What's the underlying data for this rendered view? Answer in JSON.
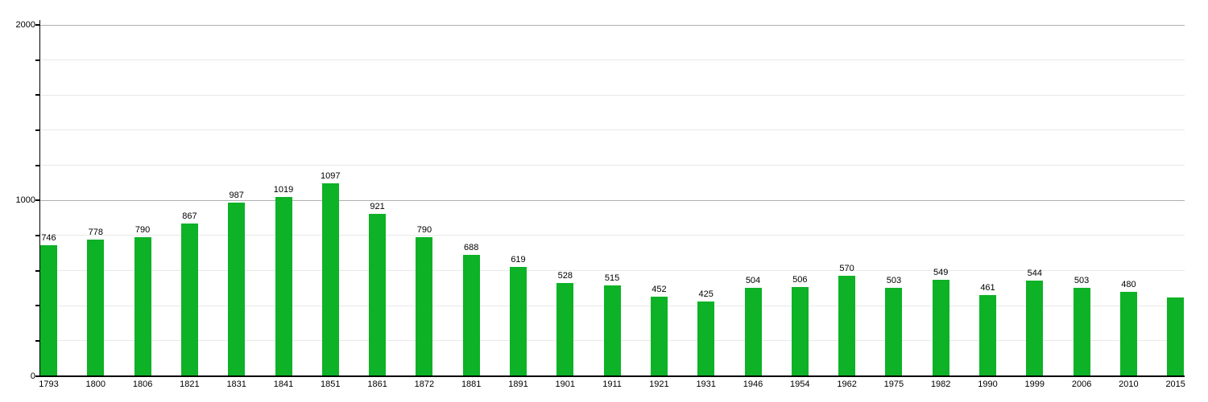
{
  "chart_data": {
    "type": "bar",
    "title": "",
    "xlabel": "",
    "ylabel": "",
    "categories": [
      "1793",
      "1800",
      "1806",
      "1821",
      "1831",
      "1841",
      "1851",
      "1861",
      "1872",
      "1881",
      "1891",
      "1901",
      "1911",
      "1921",
      "1931",
      "1946",
      "1954",
      "1962",
      "1975",
      "1982",
      "1990",
      "1999",
      "2006",
      "2010",
      "2015"
    ],
    "values": [
      746,
      778,
      790,
      867,
      987,
      1019,
      1097,
      921,
      790,
      688,
      619,
      528,
      515,
      452,
      425,
      504,
      506,
      570,
      503,
      549,
      461,
      544,
      503,
      480,
      445
    ],
    "bar_labels": [
      "746",
      "778",
      "790",
      "867",
      "987",
      "1019",
      "1097",
      "921",
      "790",
      "688",
      "619",
      "528",
      "515",
      "452",
      "425",
      "504",
      "506",
      "570",
      "503",
      "549",
      "461",
      "544",
      "503",
      "480",
      ""
    ],
    "ylim": [
      0,
      2000
    ],
    "y_major_ticks": [
      {
        "value": 0,
        "label": "0"
      },
      {
        "value": 1000,
        "label": "1000"
      },
      {
        "value": 2000,
        "label": "2000"
      }
    ],
    "y_minor_step": 200,
    "grid": "on",
    "legend_position": "none",
    "bar_color": "#0db226",
    "minor_grid_color": "#e9e9e9",
    "major_grid_color": "#b0b0b0",
    "axis_color": "#000000",
    "text_color": "#000000"
  }
}
